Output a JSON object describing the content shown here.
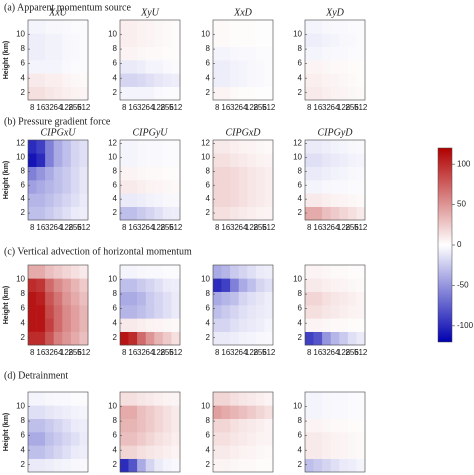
{
  "sections": [
    "(a) Apparent momentum source",
    "(b) Pressure gradient force",
    "(c) Vertical advection of horizontal momentum",
    "(d) Detrainment"
  ],
  "colorbar": {
    "clim": [
      -120,
      120
    ],
    "ticks": [
      100,
      50,
      0,
      -50,
      -100
    ]
  },
  "chart_data": [
    {
      "type": "heatmap",
      "title": "XxU",
      "ylabel": "Height (km)",
      "categories": [
        "8",
        "16",
        "32",
        "64",
        "128",
        "256",
        "512"
      ],
      "ylim": [
        1,
        12
      ],
      "yticks": [
        2,
        4,
        6,
        8,
        10
      ],
      "values": [
        [
          15,
          15,
          12,
          10,
          8,
          6,
          5
        ],
        [
          10,
          10,
          8,
          8,
          5,
          4,
          3
        ],
        [
          -5,
          -5,
          -5,
          -5,
          -3,
          -2,
          -2
        ],
        [
          -8,
          -8,
          -6,
          -6,
          -4,
          -3,
          -2
        ],
        [
          -8,
          -8,
          -6,
          -6,
          -4,
          -3,
          -2
        ],
        [
          -5,
          -5,
          -4,
          -4,
          -3,
          -2,
          -2
        ]
      ]
    },
    {
      "type": "heatmap",
      "title": "XyU",
      "categories": [
        "8",
        "16",
        "32",
        "64",
        "128",
        "256",
        "512"
      ],
      "ylim": [
        1,
        12
      ],
      "yticks": [
        2,
        4,
        6,
        8,
        10
      ],
      "values": [
        [
          -5,
          -5,
          -5,
          -5,
          -3,
          -2,
          -2
        ],
        [
          -20,
          -20,
          -18,
          -15,
          -12,
          -10,
          -8
        ],
        [
          -10,
          -10,
          -8,
          -5,
          -5,
          -3,
          -2
        ],
        [
          5,
          5,
          4,
          3,
          3,
          2,
          2
        ],
        [
          8,
          8,
          6,
          5,
          4,
          3,
          2
        ],
        [
          8,
          8,
          6,
          5,
          4,
          3,
          2
        ]
      ]
    },
    {
      "type": "heatmap",
      "title": "XxD",
      "categories": [
        "8",
        "16",
        "32",
        "64",
        "128",
        "256",
        "512"
      ],
      "ylim": [
        1,
        12
      ],
      "yticks": [
        2,
        4,
        6,
        8,
        10
      ],
      "values": [
        [
          5,
          5,
          3,
          2,
          2,
          1,
          1
        ],
        [
          -8,
          -8,
          -6,
          -5,
          -4,
          -3,
          -2
        ],
        [
          -8,
          -8,
          -6,
          -5,
          -4,
          -3,
          -2
        ],
        [
          -5,
          -5,
          -4,
          -3,
          -3,
          -2,
          -2
        ],
        [
          3,
          3,
          2,
          2,
          2,
          1,
          1
        ],
        [
          3,
          3,
          2,
          2,
          2,
          1,
          1
        ]
      ]
    },
    {
      "type": "heatmap",
      "title": "XyD",
      "categories": [
        "8",
        "16",
        "32",
        "64",
        "128",
        "256",
        "512"
      ],
      "ylim": [
        1,
        12
      ],
      "yticks": [
        2,
        4,
        6,
        8,
        10
      ],
      "values": [
        [
          10,
          10,
          8,
          6,
          5,
          4,
          3
        ],
        [
          8,
          8,
          6,
          5,
          4,
          3,
          2
        ],
        [
          5,
          5,
          4,
          3,
          3,
          2,
          2
        ],
        [
          -5,
          -5,
          -4,
          -3,
          -3,
          -2,
          -2
        ],
        [
          -8,
          -8,
          -6,
          -5,
          -4,
          -3,
          -2
        ],
        [
          -5,
          -5,
          -4,
          -3,
          -3,
          -2,
          -2
        ]
      ]
    },
    {
      "type": "heatmap",
      "title": "CIPGxU",
      "ylabel": "Height (km)",
      "categories": [
        "8",
        "16",
        "32",
        "64",
        "128",
        "256",
        "512"
      ],
      "ylim": [
        1,
        12.5
      ],
      "yticks": [
        2,
        4,
        6,
        8,
        10,
        12
      ],
      "values": [
        [
          -30,
          -30,
          -25,
          -20,
          -15,
          -10,
          -8
        ],
        [
          -35,
          -35,
          -30,
          -25,
          -20,
          -15,
          -10
        ],
        [
          -45,
          -40,
          -35,
          -30,
          -25,
          -18,
          -12
        ],
        [
          -60,
          -50,
          -40,
          -30,
          -25,
          -18,
          -12
        ],
        [
          -110,
          -100,
          -60,
          -40,
          -30,
          -20,
          -15
        ],
        [
          -100,
          -90,
          -60,
          -40,
          -30,
          -20,
          -15
        ]
      ]
    },
    {
      "type": "heatmap",
      "title": "CIPGyU",
      "categories": [
        "8",
        "16",
        "32",
        "64",
        "128",
        "256",
        "512"
      ],
      "ylim": [
        1,
        12.5
      ],
      "yticks": [
        2,
        4,
        6,
        8,
        10,
        12
      ],
      "values": [
        [
          -30,
          -30,
          -25,
          -20,
          -15,
          -10,
          -8
        ],
        [
          -10,
          -10,
          -8,
          -6,
          -5,
          -4,
          -3
        ],
        [
          10,
          10,
          8,
          6,
          5,
          4,
          3
        ],
        [
          5,
          5,
          4,
          3,
          3,
          2,
          2
        ],
        [
          -5,
          -5,
          -4,
          -3,
          -3,
          -2,
          -2
        ],
        [
          -5,
          -5,
          -4,
          -3,
          -3,
          -2,
          -2
        ]
      ]
    },
    {
      "type": "heatmap",
      "title": "CIPGxD",
      "categories": [
        "8",
        "16",
        "32",
        "64",
        "128",
        "256",
        "512"
      ],
      "ylim": [
        1,
        12.5
      ],
      "yticks": [
        2,
        4,
        6,
        8,
        10,
        12
      ],
      "values": [
        [
          15,
          15,
          12,
          10,
          8,
          6,
          5
        ],
        [
          20,
          20,
          18,
          15,
          12,
          10,
          8
        ],
        [
          20,
          20,
          18,
          15,
          12,
          10,
          8
        ],
        [
          20,
          20,
          18,
          15,
          12,
          10,
          8
        ],
        [
          15,
          15,
          12,
          10,
          8,
          6,
          5
        ],
        [
          10,
          10,
          8,
          6,
          5,
          4,
          3
        ]
      ]
    },
    {
      "type": "heatmap",
      "title": "CIPGyD",
      "categories": [
        "8",
        "16",
        "32",
        "64",
        "128",
        "256",
        "512"
      ],
      "ylim": [
        1,
        12.5
      ],
      "yticks": [
        2,
        4,
        6,
        8,
        10,
        12
      ],
      "values": [
        [
          40,
          40,
          30,
          25,
          20,
          15,
          10
        ],
        [
          10,
          10,
          8,
          6,
          5,
          4,
          3
        ],
        [
          -5,
          -5,
          -4,
          -3,
          -3,
          -2,
          -2
        ],
        [
          -10,
          -10,
          -8,
          -6,
          -5,
          -4,
          -3
        ],
        [
          -15,
          -15,
          -12,
          -10,
          -8,
          -6,
          -5
        ],
        [
          -10,
          -10,
          -8,
          -6,
          -5,
          -4,
          -3
        ]
      ]
    },
    {
      "type": "heatmap",
      "ylabel": "Height (km)",
      "categories": [
        "8",
        "16",
        "32",
        "64",
        "128",
        "256",
        "512"
      ],
      "ylim": [
        1,
        12
      ],
      "yticks": [
        2,
        4,
        6,
        8,
        10
      ],
      "values": [
        [
          100,
          100,
          80,
          60,
          50,
          40,
          30
        ],
        [
          110,
          110,
          90,
          70,
          55,
          45,
          35
        ],
        [
          110,
          110,
          85,
          70,
          55,
          45,
          35
        ],
        [
          110,
          105,
          80,
          65,
          50,
          40,
          30
        ],
        [
          100,
          95,
          70,
          55,
          45,
          35,
          25
        ],
        [
          40,
          40,
          30,
          25,
          20,
          15,
          10
        ]
      ]
    },
    {
      "type": "heatmap",
      "categories": [
        "8",
        "16",
        "32",
        "64",
        "128",
        "256",
        "512"
      ],
      "ylim": [
        1,
        12
      ],
      "yticks": [
        2,
        4,
        6,
        8,
        10
      ],
      "values": [
        [
          110,
          100,
          70,
          50,
          35,
          25,
          15
        ],
        [
          10,
          10,
          8,
          6,
          5,
          4,
          3
        ],
        [
          -35,
          -35,
          -30,
          -25,
          -20,
          -15,
          -10
        ],
        [
          -40,
          -40,
          -35,
          -25,
          -20,
          -15,
          -10
        ],
        [
          -30,
          -30,
          -25,
          -20,
          -15,
          -10,
          -8
        ],
        [
          -5,
          -5,
          -4,
          -3,
          -3,
          -2,
          -2
        ]
      ]
    },
    {
      "type": "heatmap",
      "categories": [
        "8",
        "16",
        "32",
        "64",
        "128",
        "256",
        "512"
      ],
      "ylim": [
        1,
        12
      ],
      "yticks": [
        2,
        4,
        6,
        8,
        10
      ],
      "values": [
        [
          -10,
          -10,
          -8,
          -6,
          -5,
          -4,
          -3
        ],
        [
          -20,
          -20,
          -15,
          -12,
          -10,
          -8,
          -5
        ],
        [
          -30,
          -25,
          -20,
          -15,
          -12,
          -10,
          -8
        ],
        [
          -40,
          -35,
          -30,
          -20,
          -15,
          -12,
          -8
        ],
        [
          -100,
          -90,
          -60,
          -40,
          -30,
          -20,
          -15
        ],
        [
          -40,
          -35,
          -25,
          -20,
          -15,
          -10,
          -8
        ]
      ]
    },
    {
      "type": "heatmap",
      "categories": [
        "8",
        "16",
        "32",
        "64",
        "128",
        "256",
        "512"
      ],
      "ylim": [
        1,
        12
      ],
      "yticks": [
        2,
        4,
        6,
        8,
        10
      ],
      "values": [
        [
          -90,
          -80,
          -50,
          -35,
          -25,
          -15,
          -10
        ],
        [
          5,
          5,
          4,
          3,
          3,
          2,
          2
        ],
        [
          15,
          15,
          12,
          10,
          8,
          6,
          5
        ],
        [
          20,
          20,
          15,
          12,
          10,
          8,
          5
        ],
        [
          10,
          10,
          8,
          6,
          5,
          4,
          3
        ],
        [
          5,
          5,
          4,
          3,
          3,
          2,
          2
        ]
      ]
    },
    {
      "type": "heatmap",
      "ylabel": "Height (km)",
      "categories": [
        "8",
        "16",
        "32",
        "64",
        "128",
        "256",
        "512"
      ],
      "ylim": [
        1,
        12
      ],
      "yticks": [
        2,
        4,
        6,
        8,
        10
      ],
      "values": [
        [
          -10,
          -10,
          -8,
          -6,
          -5,
          -4,
          -3
        ],
        [
          -30,
          -30,
          -25,
          -20,
          -15,
          -10,
          -8
        ],
        [
          -40,
          -40,
          -30,
          -25,
          -20,
          -15,
          -10
        ],
        [
          -30,
          -30,
          -25,
          -20,
          -15,
          -10,
          -8
        ],
        [
          -15,
          -15,
          -12,
          -10,
          -8,
          -6,
          -5
        ],
        [
          -5,
          -5,
          -4,
          -3,
          -3,
          -2,
          -2
        ]
      ]
    },
    {
      "type": "heatmap",
      "categories": [
        "8",
        "16",
        "32",
        "64",
        "128",
        "256",
        "512"
      ],
      "ylim": [
        1,
        12
      ],
      "yticks": [
        2,
        4,
        6,
        8,
        10
      ],
      "values": [
        [
          -100,
          -80,
          -40,
          -20,
          -10,
          -5,
          -3
        ],
        [
          20,
          20,
          15,
          12,
          10,
          8,
          5
        ],
        [
          30,
          30,
          25,
          20,
          15,
          12,
          8
        ],
        [
          35,
          35,
          30,
          25,
          20,
          15,
          10
        ],
        [
          40,
          40,
          30,
          25,
          20,
          15,
          10
        ],
        [
          15,
          15,
          12,
          10,
          8,
          6,
          5
        ]
      ]
    },
    {
      "type": "heatmap",
      "categories": [
        "8",
        "16",
        "32",
        "64",
        "128",
        "256",
        "512"
      ],
      "ylim": [
        1,
        12
      ],
      "yticks": [
        2,
        4,
        6,
        8,
        10
      ],
      "values": [
        [
          5,
          5,
          4,
          3,
          3,
          2,
          2
        ],
        [
          10,
          10,
          8,
          6,
          5,
          4,
          3
        ],
        [
          15,
          15,
          12,
          10,
          8,
          6,
          5
        ],
        [
          20,
          20,
          15,
          12,
          10,
          8,
          5
        ],
        [
          45,
          40,
          35,
          30,
          25,
          20,
          15
        ],
        [
          20,
          20,
          15,
          12,
          10,
          8,
          5
        ]
      ]
    },
    {
      "type": "heatmap",
      "categories": [
        "8",
        "16",
        "32",
        "64",
        "128",
        "256",
        "512"
      ],
      "ylim": [
        1,
        12
      ],
      "yticks": [
        2,
        4,
        6,
        8,
        10
      ],
      "values": [
        [
          -30,
          -25,
          -20,
          -15,
          -10,
          -8,
          -5
        ],
        [
          10,
          10,
          8,
          6,
          5,
          4,
          3
        ],
        [
          10,
          10,
          8,
          6,
          5,
          4,
          3
        ],
        [
          5,
          5,
          4,
          3,
          3,
          2,
          2
        ],
        [
          -5,
          -5,
          -4,
          -3,
          -3,
          -2,
          -2
        ],
        [
          -5,
          -5,
          -4,
          -3,
          -3,
          -2,
          -2
        ]
      ]
    }
  ]
}
